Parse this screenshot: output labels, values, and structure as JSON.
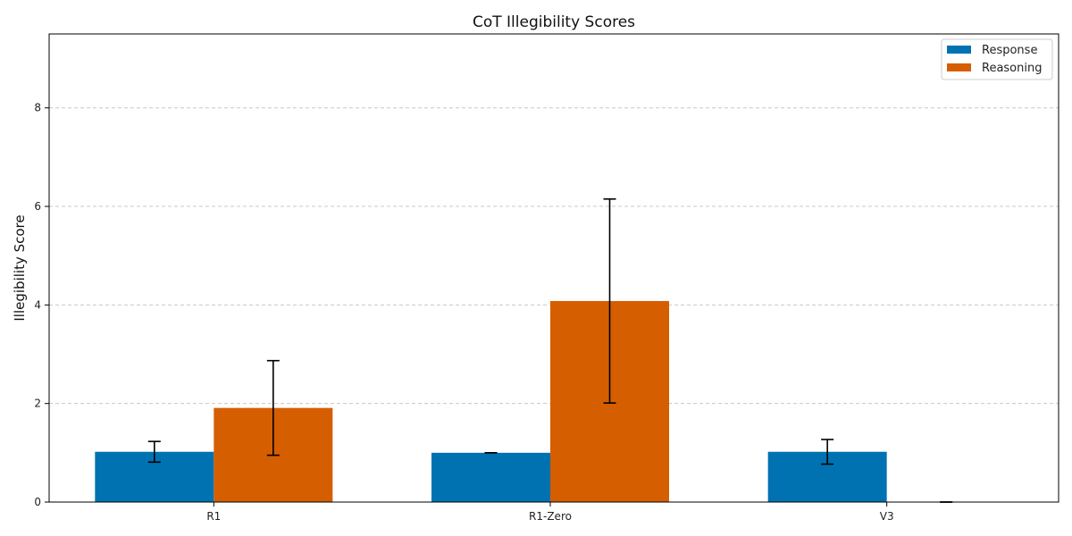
{
  "chart_data": {
    "type": "bar",
    "title": "CoT Illegibility Scores",
    "xlabel": "",
    "ylabel": "Illegibility Score",
    "categories": [
      "R1",
      "R1-Zero",
      "V3"
    ],
    "ylim": [
      0,
      9.5
    ],
    "yticks": [
      0,
      2,
      4,
      6,
      8
    ],
    "grid": "y-dashed",
    "legend_position": "top-right",
    "series": [
      {
        "name": "Response",
        "color": "#0072b2",
        "values": [
          1.02,
          1.0,
          1.02
        ],
        "errors": [
          0.21,
          0.0,
          0.25
        ]
      },
      {
        "name": "Reasoning",
        "color": "#d55e00",
        "values": [
          1.91,
          4.08,
          0.0
        ],
        "errors": [
          0.96,
          2.07,
          0.0
        ]
      }
    ]
  }
}
